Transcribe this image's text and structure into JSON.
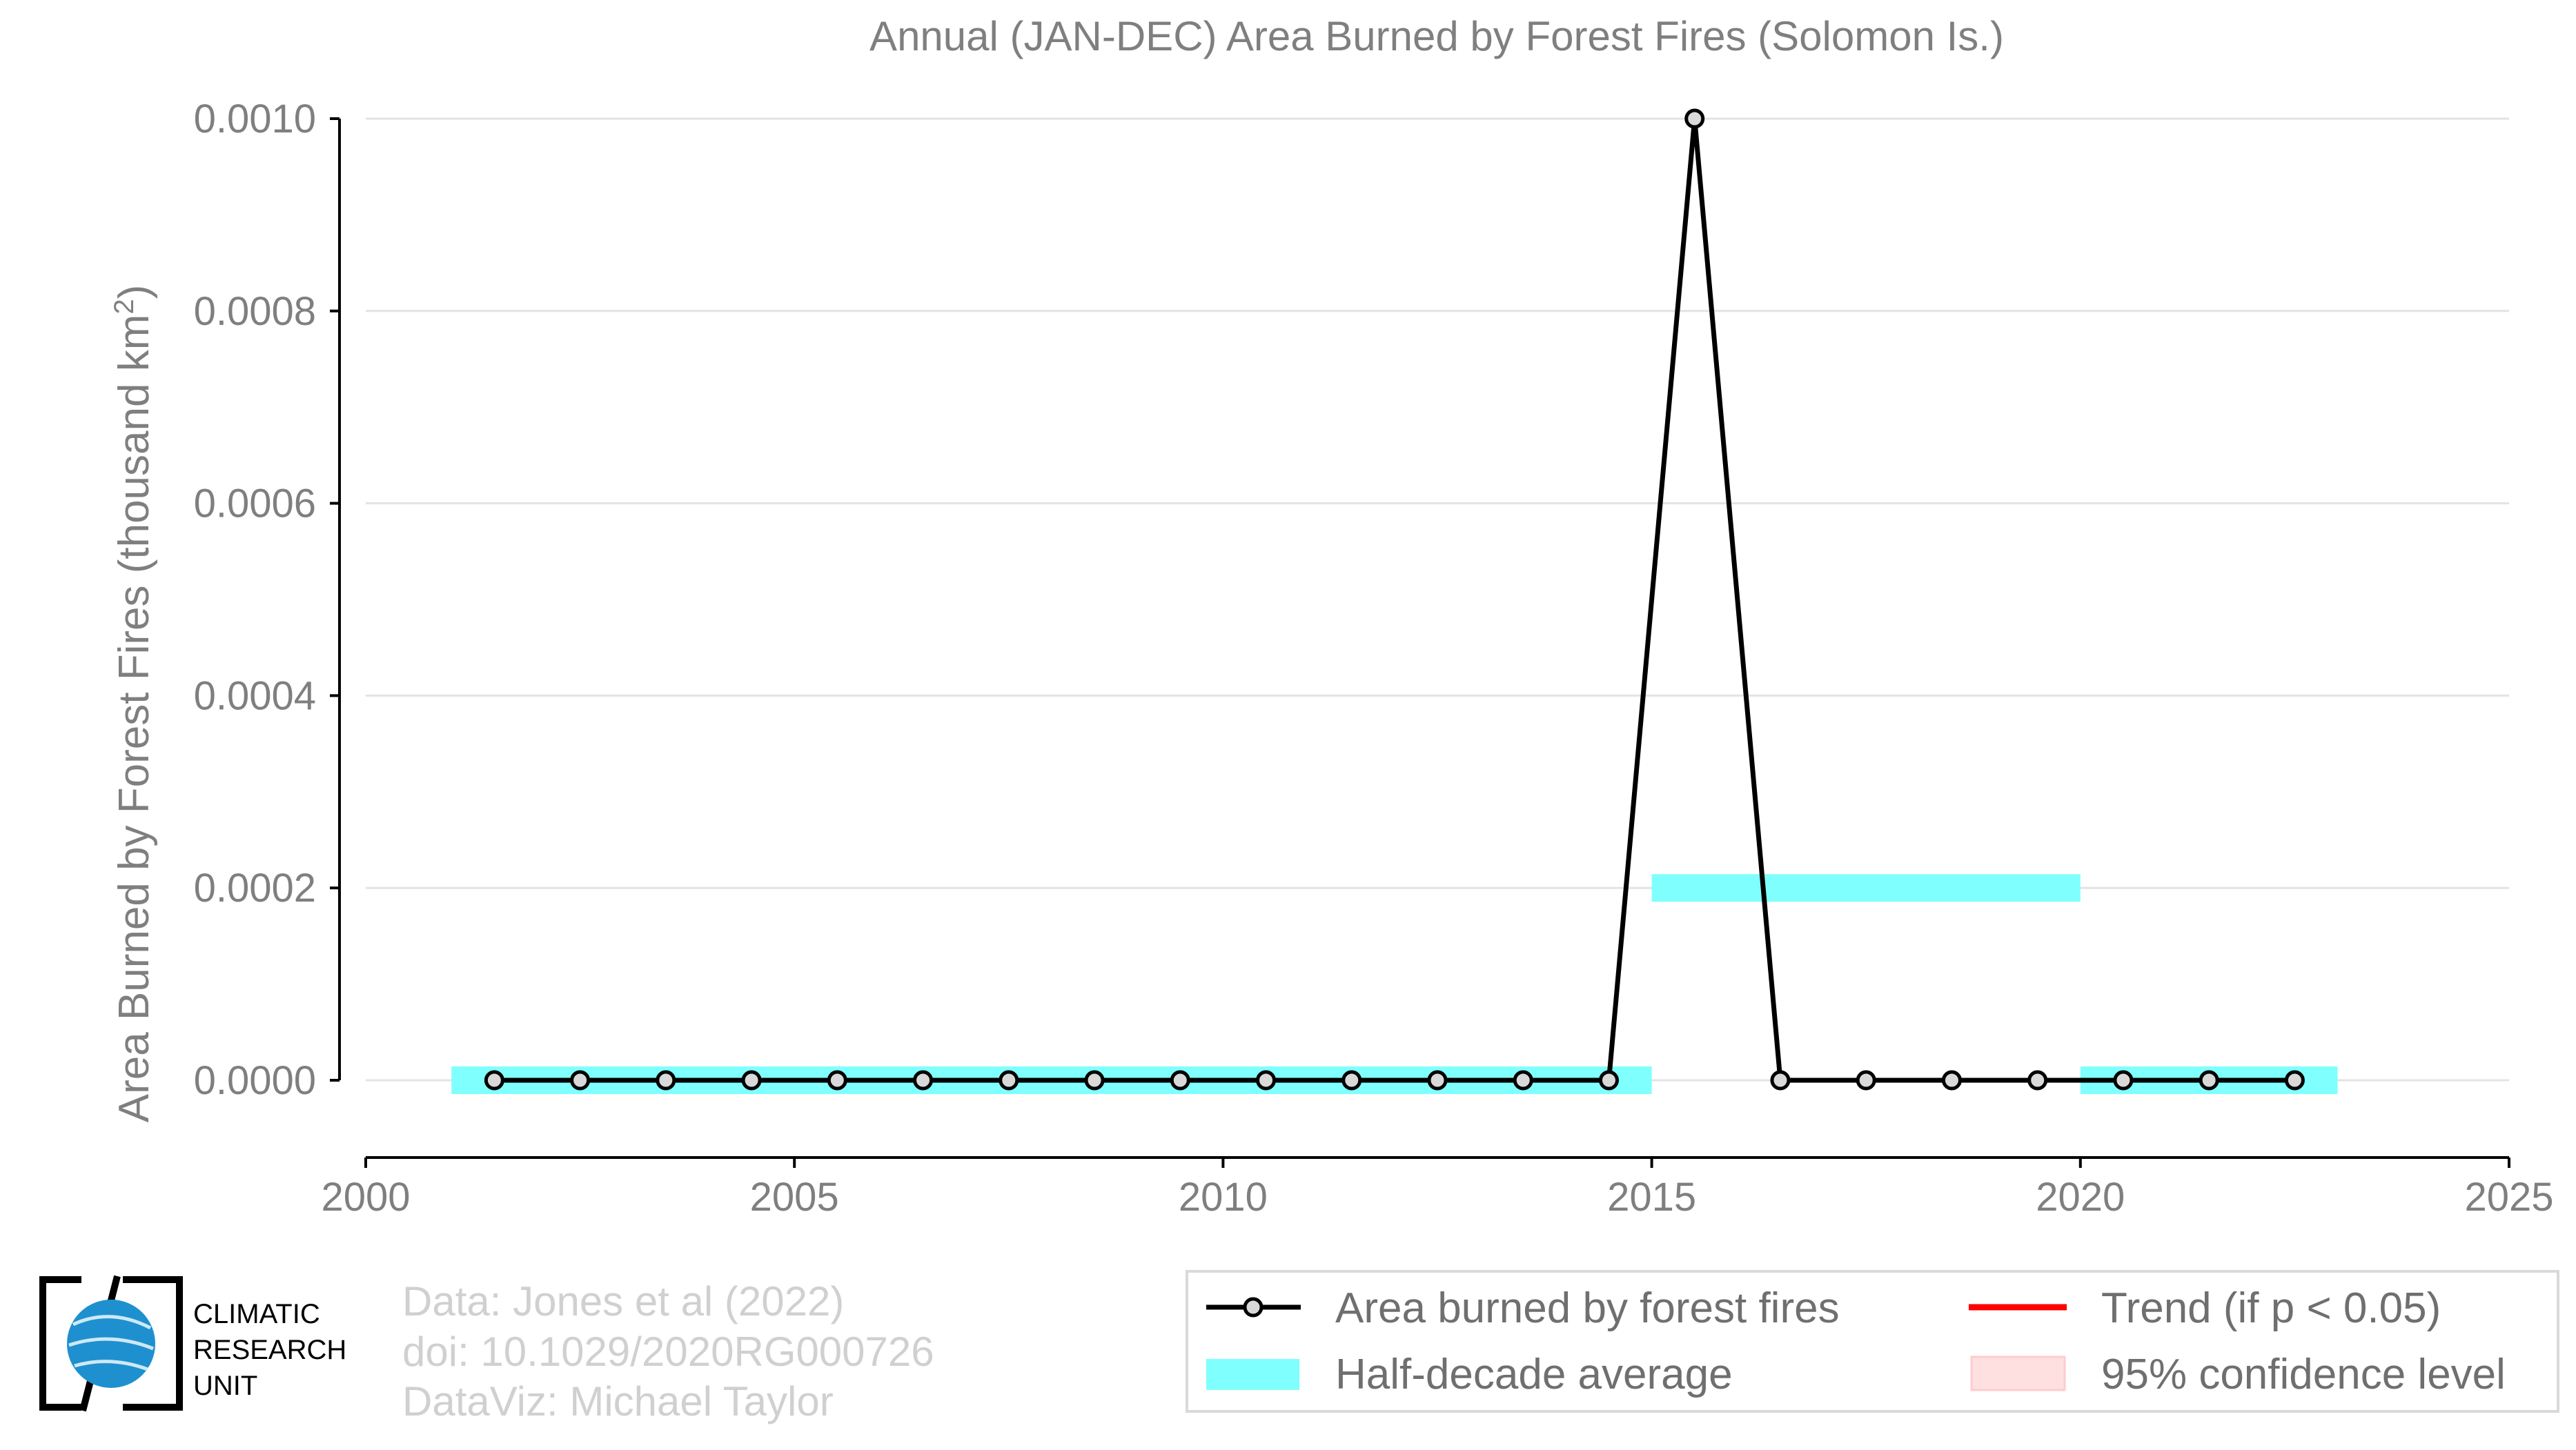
{
  "chart_data": {
    "type": "line",
    "title": "Annual (JAN-DEC) Area Burned by Forest Fires (Solomon Is.)",
    "xlabel": "",
    "ylabel_main": "Area Burned by Forest Fires (thousand km",
    "ylabel_sup": "2",
    "ylabel_tail": ")",
    "xlim": [
      2000,
      2025
    ],
    "ylim": [
      0,
      0.001
    ],
    "x_ticks": [
      2000,
      2005,
      2010,
      2015,
      2020,
      2025
    ],
    "y_ticks": [
      0.0,
      0.0002,
      0.0004,
      0.0006,
      0.0008,
      0.001
    ],
    "y_tick_labels": [
      "0.0000",
      "0.0002",
      "0.0004",
      "0.0006",
      "0.0008",
      "0.0010"
    ],
    "grid": true,
    "series": [
      {
        "name": "Area burned by forest fires",
        "x": [
          2001.5,
          2002.5,
          2003.5,
          2004.5,
          2005.5,
          2006.5,
          2007.5,
          2008.5,
          2009.5,
          2010.5,
          2011.5,
          2012.5,
          2013.5,
          2014.5,
          2015.5,
          2016.5,
          2017.5,
          2018.5,
          2019.5,
          2020.5,
          2021.5,
          2022.5
        ],
        "values": [
          0,
          0,
          0,
          0,
          0,
          0,
          0,
          0,
          0,
          0,
          0,
          0,
          0,
          0,
          0.001,
          0,
          0,
          0,
          0,
          0,
          0,
          0
        ],
        "color": "#000000"
      }
    ],
    "half_decade_average": {
      "name": "Half-decade average",
      "color": "#80ffff",
      "segments": [
        {
          "x_start": 2001,
          "x_end": 2015,
          "value": 0.0
        },
        {
          "x_start": 2015,
          "x_end": 2020,
          "value": 0.0002
        },
        {
          "x_start": 2020,
          "x_end": 2023,
          "value": 0.0
        }
      ]
    },
    "legend": {
      "placement": "bottom-right",
      "entries": [
        {
          "label": "Area burned by forest fires",
          "kind": "line-marker",
          "color": "#000000"
        },
        {
          "label": "Trend (if p < 0.05)",
          "kind": "line",
          "color": "#ff0000"
        },
        {
          "label": "Half-decade average",
          "kind": "band",
          "color": "#80ffff"
        },
        {
          "label": "95% confidence level",
          "kind": "band",
          "color": "#ffe0e0"
        }
      ]
    }
  },
  "credits": [
    "Data: Jones et al (2022)",
    "doi: 10.1029/2020RG000726",
    "DataViz: Michael Taylor"
  ],
  "logo": {
    "lines": [
      "CLIMATIC",
      "RESEARCH",
      "UNIT"
    ],
    "globe_color": "#1e90cf"
  }
}
